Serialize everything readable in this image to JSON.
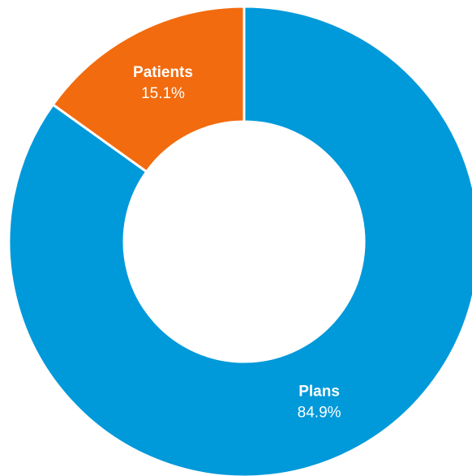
{
  "chart_data": {
    "type": "pie",
    "variant": "donut",
    "title": "",
    "slices": [
      {
        "label": "Plans",
        "value": 84.9,
        "display": "84.9%",
        "color": "#0099da"
      },
      {
        "label": "Patients",
        "value": 15.1,
        "display": "15.1%",
        "color": "#f26b0e"
      }
    ],
    "start_angle_deg": 0,
    "direction": "clockwise",
    "slice_separator_color": "#ffffff"
  }
}
